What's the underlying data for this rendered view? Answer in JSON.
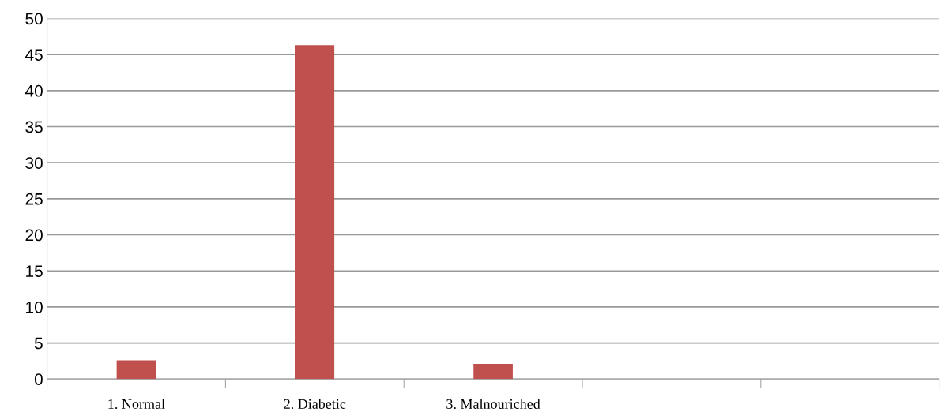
{
  "chart_data": {
    "type": "bar",
    "categories": [
      "1. Normal",
      "2. Diabetic",
      "3. Malnouriched",
      null,
      null
    ],
    "values": [
      2.6,
      46.3,
      2.1,
      null,
      null
    ],
    "color": "#c0504d",
    "ylim": [
      0,
      50
    ],
    "yticks": [
      0,
      5,
      10,
      15,
      20,
      25,
      30,
      35,
      40,
      45,
      50
    ],
    "grid": "y",
    "legend": false
  }
}
